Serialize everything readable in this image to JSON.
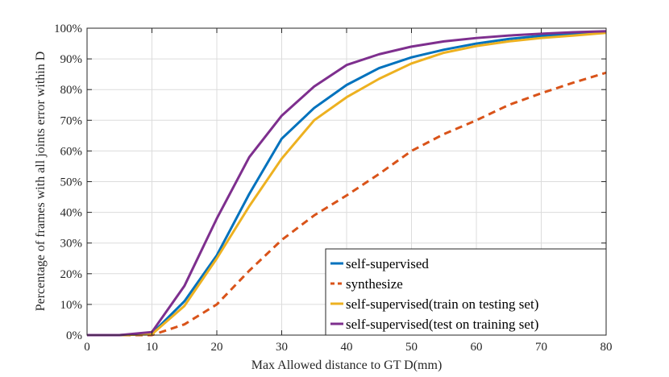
{
  "chart_data": {
    "type": "line",
    "title": "",
    "xlabel": "Max Allowed distance to GT D(mm)",
    "ylabel": "Percentage of frames with all joints error within D",
    "xlim": [
      0,
      80
    ],
    "ylim": [
      0,
      100
    ],
    "x_ticks": [
      0,
      10,
      20,
      30,
      40,
      50,
      60,
      70,
      80
    ],
    "y_ticks": [
      0,
      10,
      20,
      30,
      40,
      50,
      60,
      70,
      80,
      90,
      100
    ],
    "y_tick_suffix": "%",
    "grid": true,
    "legend_position": "bottom-right",
    "x": [
      0,
      5,
      10,
      15,
      20,
      25,
      30,
      35,
      40,
      45,
      50,
      55,
      60,
      65,
      70,
      75,
      80
    ],
    "series": [
      {
        "name": "self-supervised",
        "color": "#0072BD",
        "dash": "solid",
        "values": [
          0,
          0,
          0.5,
          11,
          26,
          46,
          64,
          74,
          81.5,
          87,
          90.5,
          93,
          95,
          96.5,
          97.5,
          98.3,
          98.8
        ]
      },
      {
        "name": "synthesize",
        "color": "#D95319",
        "dash": "dashed",
        "values": [
          0,
          0,
          0,
          3.5,
          10,
          21,
          31,
          39,
          45.5,
          52.5,
          60,
          65.5,
          70,
          75,
          78.8,
          82.3,
          85.5
        ]
      },
      {
        "name": "self-supervised(train on testing set)",
        "color": "#EDB120",
        "dash": "solid",
        "values": [
          0,
          0,
          0.3,
          9.5,
          25,
          42,
          57.5,
          70,
          77.5,
          83.5,
          88.5,
          92,
          94.2,
          95.7,
          96.8,
          97.6,
          98.5
        ]
      },
      {
        "name": "self-supervised(test on training set)",
        "color": "#7E2F8E",
        "dash": "solid",
        "values": [
          0,
          0,
          1,
          16,
          38,
          58,
          71.5,
          81,
          88,
          91.5,
          94,
          95.7,
          96.8,
          97.6,
          98.2,
          98.7,
          99
        ]
      }
    ]
  }
}
